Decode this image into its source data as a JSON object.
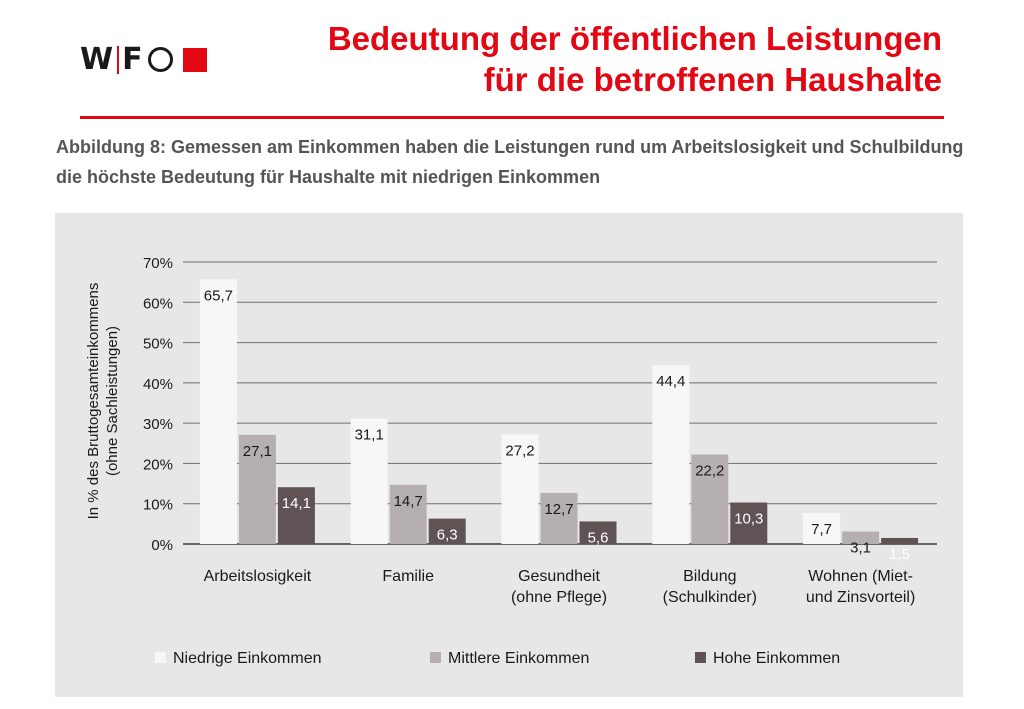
{
  "header": {
    "logo_text_left": "W",
    "logo_text_right": "F",
    "title_line1": "Bedeutung der öffentlichen Leistungen",
    "title_line2": "für die betroffenen Haushalte",
    "caption": "Abbildung 8: Gemessen am Einkommen haben die Leistungen rund um Arbeitslosigkeit und Schulbildung die höchste Bedeutung für Haushalte mit niedrigen Einkommen"
  },
  "colors": {
    "accent": "#e30613",
    "series": [
      "#f7f7f7",
      "#b6afb2",
      "#605356"
    ],
    "panel_bg": "#e8e7e7"
  },
  "chart_data": {
    "type": "bar",
    "categories": [
      [
        "Arbeitslosigkeit"
      ],
      [
        "Familie"
      ],
      [
        "Gesundheit",
        "(ohne Pflege)"
      ],
      [
        "Bildung",
        "(Schulkinder)"
      ],
      [
        "Wohnen (Miet-",
        "und Zinsvorteil)"
      ]
    ],
    "series": [
      {
        "name": "Niedrige Einkommen",
        "values": [
          65.7,
          31.1,
          27.2,
          44.4,
          7.7
        ],
        "labels": [
          "65,7",
          "31,1",
          "27,2",
          "44,4",
          "7,7"
        ]
      },
      {
        "name": "Mittlere Einkommen",
        "values": [
          27.1,
          14.7,
          12.7,
          22.2,
          3.1
        ],
        "labels": [
          "27,1",
          "14,7",
          "12,7",
          "22,2",
          "3,1"
        ]
      },
      {
        "name": "Hohe Einkommen",
        "values": [
          14.1,
          6.3,
          5.6,
          10.3,
          1.5
        ],
        "labels": [
          "14,1",
          "6,3",
          "5,6",
          "10,3",
          "1,5"
        ]
      }
    ],
    "ylim": [
      0,
      70
    ],
    "yticks": [
      0,
      10,
      20,
      30,
      40,
      50,
      60,
      70
    ],
    "ytick_labels": [
      "0%",
      "10%",
      "20%",
      "30%",
      "40%",
      "50%",
      "60%",
      "70%"
    ],
    "ylabel_line1": "In % des Bruttogesamteinkommens",
    "ylabel_line2": "(ohne Sachleistungen)",
    "grid": true,
    "legend_position": "bottom"
  }
}
